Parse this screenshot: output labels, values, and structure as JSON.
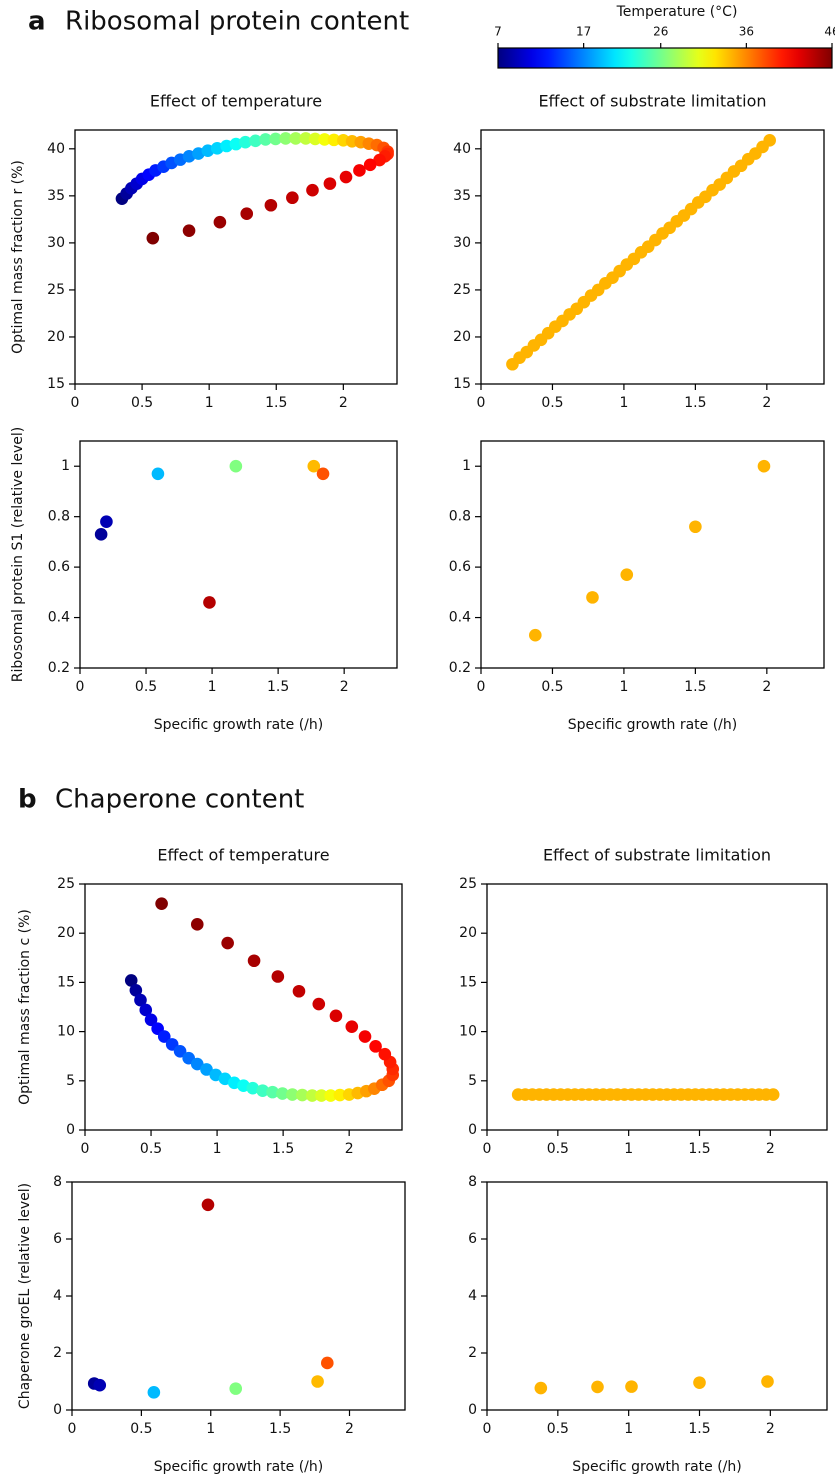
{
  "sections": [
    {
      "letter": "a",
      "title": "Ribosomal protein content"
    },
    {
      "letter": "b",
      "title": "Chaperone content"
    }
  ],
  "colorbar": {
    "title": "Temperature (°C)",
    "colormap": "jet",
    "clim": [
      7,
      46
    ],
    "ticks": [
      7,
      17,
      26,
      36,
      46
    ]
  },
  "chart_data": [
    {
      "type": "scatter",
      "title": "Effect of temperature",
      "ylabel": "Optimal mass fraction r (%)",
      "x": [
        0.35,
        0.385,
        0.42,
        0.46,
        0.5,
        0.55,
        0.6,
        0.66,
        0.72,
        0.785,
        0.85,
        0.92,
        0.99,
        1.06,
        1.13,
        1.2,
        1.27,
        1.345,
        1.42,
        1.495,
        1.57,
        1.645,
        1.72,
        1.79,
        1.86,
        1.93,
        2.0,
        2.065,
        2.13,
        2.19,
        2.25,
        2.3,
        2.33,
        2.33,
        2.31,
        2.27,
        2.2,
        2.12,
        2.02,
        1.9,
        1.77,
        1.62,
        1.46,
        1.28,
        1.08,
        0.85,
        0.58
      ],
      "y": [
        34.7,
        35.25,
        35.8,
        36.3,
        36.8,
        37.25,
        37.7,
        38.1,
        38.5,
        38.85,
        39.2,
        39.5,
        39.8,
        40.05,
        40.3,
        40.5,
        40.7,
        40.85,
        41.0,
        41.05,
        41.1,
        41.1,
        41.1,
        41.05,
        41.0,
        40.95,
        40.9,
        40.8,
        40.7,
        40.55,
        40.4,
        40.1,
        39.7,
        39.45,
        39.2,
        38.8,
        38.3,
        37.7,
        37.0,
        36.3,
        35.6,
        34.8,
        34.0,
        33.1,
        32.2,
        31.3,
        30.5
      ],
      "c": [
        7,
        8,
        9,
        10,
        11,
        12,
        13,
        14,
        15,
        16,
        17,
        18,
        19,
        20,
        21,
        22,
        23,
        24,
        25,
        26,
        27,
        28,
        29,
        30,
        31,
        32,
        33,
        34,
        35,
        36,
        37,
        38,
        39,
        39.5,
        40,
        40.5,
        41,
        41.5,
        42,
        42.5,
        43,
        43.5,
        44,
        44.5,
        45,
        45.5,
        46
      ],
      "xlim": [
        0,
        2.4
      ],
      "xticks": [
        0,
        0.5,
        1,
        1.5,
        2
      ],
      "ylim": [
        15,
        42
      ],
      "yticks": [
        15,
        20,
        25,
        30,
        35,
        40
      ]
    },
    {
      "type": "scatter",
      "title": "Effect of substrate limitation",
      "color": "#ffb400",
      "x": [
        0.22,
        0.27,
        0.32,
        0.37,
        0.42,
        0.47,
        0.52,
        0.57,
        0.62,
        0.67,
        0.72,
        0.77,
        0.82,
        0.87,
        0.92,
        0.97,
        1.02,
        1.07,
        1.12,
        1.17,
        1.22,
        1.27,
        1.32,
        1.37,
        1.42,
        1.47,
        1.52,
        1.57,
        1.62,
        1.67,
        1.72,
        1.77,
        1.82,
        1.87,
        1.92,
        1.97,
        2.02
      ],
      "y": [
        17.1,
        17.8,
        18.4,
        19.1,
        19.7,
        20.4,
        21.1,
        21.7,
        22.4,
        23.0,
        23.7,
        24.4,
        25.0,
        25.7,
        26.3,
        27.0,
        27.7,
        28.3,
        29.0,
        29.6,
        30.3,
        31.0,
        31.6,
        32.3,
        32.9,
        33.6,
        34.3,
        34.9,
        35.6,
        36.2,
        36.9,
        37.6,
        38.2,
        38.9,
        39.5,
        40.2,
        40.9
      ],
      "xlim": [
        0,
        2.4
      ],
      "xticks": [
        0,
        0.5,
        1,
        1.5,
        2
      ],
      "ylim": [
        15,
        42
      ],
      "yticks": [
        15,
        20,
        25,
        30,
        35,
        40
      ]
    },
    {
      "type": "scatter",
      "ylabel": "Ribosomal protein S1 (relative level)",
      "xlabel": "Specific growth rate (/h)",
      "x": [
        0.16,
        0.2,
        0.59,
        1.18,
        1.77,
        1.84,
        0.98
      ],
      "y": [
        0.73,
        0.78,
        0.97,
        1.0,
        1.0,
        0.97,
        0.46
      ],
      "c": [
        8,
        9,
        19,
        26.5,
        34,
        38,
        44
      ],
      "xlim": [
        0,
        2.4
      ],
      "xticks": [
        0,
        0.5,
        1,
        1.5,
        2
      ],
      "ylim": [
        0.2,
        1.1
      ],
      "yticks": [
        0.2,
        0.4,
        0.6,
        0.8,
        1
      ]
    },
    {
      "type": "scatter",
      "xlabel": "Specific growth rate (/h)",
      "color": "#ffb400",
      "x": [
        0.38,
        0.78,
        1.02,
        1.5,
        1.98
      ],
      "y": [
        0.33,
        0.48,
        0.57,
        0.76,
        1.0
      ],
      "xlim": [
        0,
        2.4
      ],
      "xticks": [
        0,
        0.5,
        1,
        1.5,
        2
      ],
      "ylim": [
        0.2,
        1.1
      ],
      "yticks": [
        0.2,
        0.4,
        0.6,
        0.8,
        1
      ]
    },
    {
      "type": "scatter",
      "title": "Effect of temperature",
      "ylabel": "Optimal mass fraction c (%)",
      "x": [
        0.35,
        0.385,
        0.42,
        0.46,
        0.5,
        0.55,
        0.6,
        0.66,
        0.72,
        0.785,
        0.85,
        0.92,
        0.99,
        1.06,
        1.13,
        1.2,
        1.27,
        1.345,
        1.42,
        1.495,
        1.57,
        1.645,
        1.72,
        1.79,
        1.86,
        1.93,
        2.0,
        2.065,
        2.13,
        2.19,
        2.25,
        2.3,
        2.33,
        2.33,
        2.31,
        2.27,
        2.2,
        2.12,
        2.02,
        1.9,
        1.77,
        1.62,
        1.46,
        1.28,
        1.08,
        0.85,
        0.58
      ],
      "y": [
        15.2,
        14.2,
        13.2,
        12.2,
        11.2,
        10.3,
        9.5,
        8.7,
        8.0,
        7.3,
        6.7,
        6.15,
        5.6,
        5.2,
        4.8,
        4.5,
        4.25,
        4.0,
        3.85,
        3.7,
        3.6,
        3.55,
        3.5,
        3.5,
        3.5,
        3.55,
        3.6,
        3.75,
        3.95,
        4.2,
        4.6,
        5.0,
        5.6,
        6.2,
        6.9,
        7.7,
        8.5,
        9.5,
        10.5,
        11.6,
        12.8,
        14.1,
        15.6,
        17.2,
        19.0,
        20.9,
        23.0
      ],
      "c": [
        7,
        8,
        9,
        10,
        11,
        12,
        13,
        14,
        15,
        16,
        17,
        18,
        19,
        20,
        21,
        22,
        23,
        24,
        25,
        26,
        27,
        28,
        29,
        30,
        31,
        32,
        33,
        34,
        35,
        36,
        37,
        38,
        39,
        39.5,
        40,
        40.5,
        41,
        41.5,
        42,
        42.5,
        43,
        43.5,
        44,
        44.5,
        45,
        45.5,
        46
      ],
      "xlim": [
        0,
        2.4
      ],
      "xticks": [
        0,
        0.5,
        1,
        1.5,
        2
      ],
      "ylim": [
        0,
        25
      ],
      "yticks": [
        0,
        5,
        10,
        15,
        20,
        25
      ]
    },
    {
      "type": "scatter",
      "title": "Effect of substrate limitation",
      "color": "#ffb400",
      "x": [
        0.22,
        0.27,
        0.32,
        0.37,
        0.42,
        0.47,
        0.52,
        0.57,
        0.62,
        0.67,
        0.72,
        0.77,
        0.82,
        0.87,
        0.92,
        0.97,
        1.02,
        1.07,
        1.12,
        1.17,
        1.22,
        1.27,
        1.32,
        1.37,
        1.42,
        1.47,
        1.52,
        1.57,
        1.62,
        1.67,
        1.72,
        1.77,
        1.82,
        1.87,
        1.92,
        1.97,
        2.02
      ],
      "y": [
        3.6,
        3.6,
        3.6,
        3.6,
        3.6,
        3.6,
        3.6,
        3.6,
        3.6,
        3.6,
        3.6,
        3.6,
        3.6,
        3.6,
        3.6,
        3.6,
        3.6,
        3.6,
        3.6,
        3.6,
        3.6,
        3.6,
        3.6,
        3.6,
        3.6,
        3.6,
        3.6,
        3.6,
        3.6,
        3.6,
        3.6,
        3.6,
        3.6,
        3.6,
        3.6,
        3.6,
        3.6
      ],
      "xlim": [
        0,
        2.4
      ],
      "xticks": [
        0,
        0.5,
        1,
        1.5,
        2
      ],
      "ylim": [
        0,
        25
      ],
      "yticks": [
        0,
        5,
        10,
        15,
        20,
        25
      ]
    },
    {
      "type": "scatter",
      "ylabel": "Chaperone groEL (relative level)",
      "xlabel": "Specific growth rate (/h)",
      "x": [
        0.16,
        0.2,
        0.59,
        1.18,
        1.77,
        1.84,
        0.98
      ],
      "y": [
        0.93,
        0.87,
        0.62,
        0.75,
        1.0,
        1.65,
        7.2
      ],
      "c": [
        8,
        9,
        19,
        26.5,
        34,
        38,
        44
      ],
      "xlim": [
        0,
        2.4
      ],
      "xticks": [
        0,
        0.5,
        1,
        1.5,
        2
      ],
      "ylim": [
        0,
        8
      ],
      "yticks": [
        0,
        2,
        4,
        6,
        8
      ]
    },
    {
      "type": "scatter",
      "xlabel": "Specific growth rate (/h)",
      "color": "#ffb400",
      "x": [
        0.38,
        0.78,
        1.02,
        1.5,
        1.98
      ],
      "y": [
        0.77,
        0.81,
        0.82,
        0.96,
        1.0
      ],
      "xlim": [
        0,
        2.4
      ],
      "xticks": [
        0,
        0.5,
        1,
        1.5,
        2
      ],
      "ylim": [
        0,
        8
      ],
      "yticks": [
        0,
        2,
        4,
        6,
        8
      ]
    }
  ]
}
